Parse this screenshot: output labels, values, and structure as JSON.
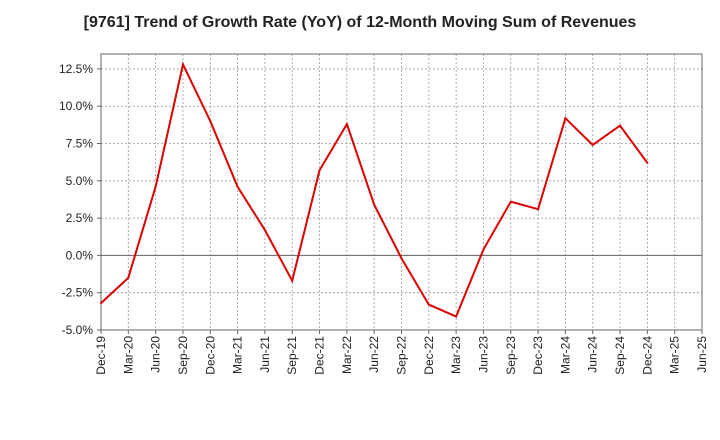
{
  "chart_data": {
    "type": "line",
    "title": "[9761]  Trend of Growth Rate (YoY) of 12-Month Moving Sum of Revenues",
    "xlabel": "",
    "ylabel": "",
    "x_ticks": [
      "Dec-19",
      "Mar-20",
      "Jun-20",
      "Sep-20",
      "Dec-20",
      "Mar-21",
      "Jun-21",
      "Sep-21",
      "Dec-21",
      "Mar-22",
      "Jun-22",
      "Sep-22",
      "Dec-22",
      "Mar-23",
      "Jun-23",
      "Sep-23",
      "Dec-23",
      "Mar-24",
      "Jun-24",
      "Sep-24",
      "Dec-24",
      "Mar-25",
      "Jun-25"
    ],
    "y_ticks": [
      "12.5%",
      "10.0%",
      "7.5%",
      "5.0%",
      "2.5%",
      "0.0%",
      "-2.5%",
      "-5.0%"
    ],
    "ylim": [
      -5.0,
      13.5
    ],
    "y_tick_values": [
      12.5,
      10.0,
      7.5,
      5.0,
      2.5,
      0.0,
      -2.5,
      -5.0
    ],
    "grid": true,
    "line_color": "#dd0000",
    "series": [
      {
        "x": [
          "Dec-19",
          "Mar-20",
          "Jun-20",
          "Sep-20",
          "Dec-20",
          "Mar-21",
          "Jun-21",
          "Sep-21",
          "Dec-21",
          "Mar-22",
          "Jun-22",
          "Sep-22",
          "Dec-22",
          "Mar-23",
          "Jun-23",
          "Sep-23",
          "Dec-23",
          "Mar-24",
          "Jun-24",
          "Sep-24",
          "Dec-24"
        ],
        "values": [
          -3.2,
          -1.5,
          4.6,
          12.8,
          9.0,
          4.6,
          1.7,
          -1.7,
          5.7,
          8.8,
          3.4,
          -0.2,
          -3.3,
          -4.1,
          0.4,
          3.6,
          3.1,
          9.2,
          7.4,
          8.7,
          6.2
        ]
      }
    ]
  }
}
